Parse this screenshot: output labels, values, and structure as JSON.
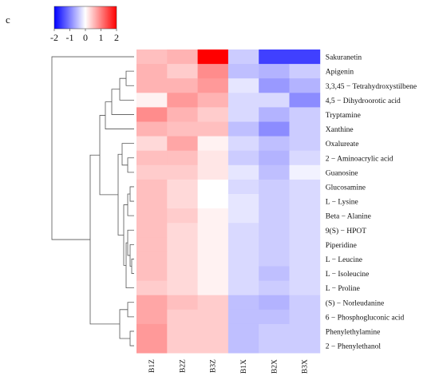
{
  "panel_label": "c",
  "chart_data": {
    "type": "heatmap",
    "title": "",
    "xlabel": "",
    "ylabel": "",
    "columns": [
      "B1Z",
      "B2Z",
      "B3Z",
      "B1X",
      "B2X",
      "B3X"
    ],
    "rows": [
      "Sakuranetin",
      "Apigenin",
      "3,3,45 − Tetrahydroxystilbene",
      "4,5 − Dihydroorotic acid",
      "Tryptamine",
      "Xanthine",
      "Oxalureate",
      "2 − Aminoacrylic acid",
      "Guanosine",
      "Glucosamine",
      "L − Lysine",
      "Beta − Alanine",
      "9(S) − HPOT",
      "Piperidine",
      "L − Leucine",
      "L − Isoleucine",
      "L − Proline",
      "(S) − Norleudanine",
      "6 − Phosphogluconic acid",
      "Phenylethylamine",
      "2 − Phenylethanol"
    ],
    "values": [
      [
        0.5,
        0.6,
        2.0,
        -0.4,
        -1.5,
        -1.5
      ],
      [
        0.6,
        0.4,
        0.9,
        -0.5,
        -0.6,
        -0.4
      ],
      [
        0.6,
        0.6,
        0.8,
        -0.2,
        -0.8,
        -0.6
      ],
      [
        0.1,
        0.8,
        0.6,
        -0.3,
        -0.3,
        -0.9
      ],
      [
        0.9,
        0.6,
        0.4,
        -0.3,
        -0.6,
        -0.4
      ],
      [
        0.6,
        0.5,
        0.5,
        -0.5,
        -0.9,
        -0.4
      ],
      [
        0.3,
        0.7,
        0.1,
        -0.3,
        -0.5,
        -0.4
      ],
      [
        0.5,
        0.5,
        0.2,
        -0.4,
        -0.6,
        -0.3
      ],
      [
        0.4,
        0.4,
        0.2,
        -0.2,
        -0.5,
        -0.1
      ],
      [
        0.5,
        0.3,
        0.0,
        -0.3,
        -0.4,
        -0.3
      ],
      [
        0.5,
        0.3,
        0.0,
        -0.2,
        -0.4,
        -0.3
      ],
      [
        0.5,
        0.4,
        0.1,
        -0.2,
        -0.4,
        -0.3
      ],
      [
        0.5,
        0.3,
        0.1,
        -0.3,
        -0.4,
        -0.3
      ],
      [
        0.5,
        0.3,
        0.1,
        -0.3,
        -0.4,
        -0.3
      ],
      [
        0.5,
        0.3,
        0.1,
        -0.3,
        -0.4,
        -0.3
      ],
      [
        0.5,
        0.3,
        0.1,
        -0.3,
        -0.5,
        -0.3
      ],
      [
        0.4,
        0.3,
        0.1,
        -0.3,
        -0.4,
        -0.3
      ],
      [
        0.7,
        0.5,
        0.4,
        -0.5,
        -0.6,
        -0.4
      ],
      [
        0.7,
        0.4,
        0.4,
        -0.5,
        -0.5,
        -0.4
      ],
      [
        0.8,
        0.4,
        0.4,
        -0.5,
        -0.4,
        -0.4
      ],
      [
        0.8,
        0.4,
        0.4,
        -0.5,
        -0.4,
        -0.4
      ]
    ],
    "color_scale": {
      "min": -2,
      "max": 2,
      "low_color": "#0000ff",
      "mid_color": "#ffffff",
      "high_color": "#ff0000",
      "ticks": [
        "-2",
        "-1",
        "0",
        "1",
        "2"
      ]
    },
    "row_dendrogram": true,
    "legend_position": "top-left"
  }
}
